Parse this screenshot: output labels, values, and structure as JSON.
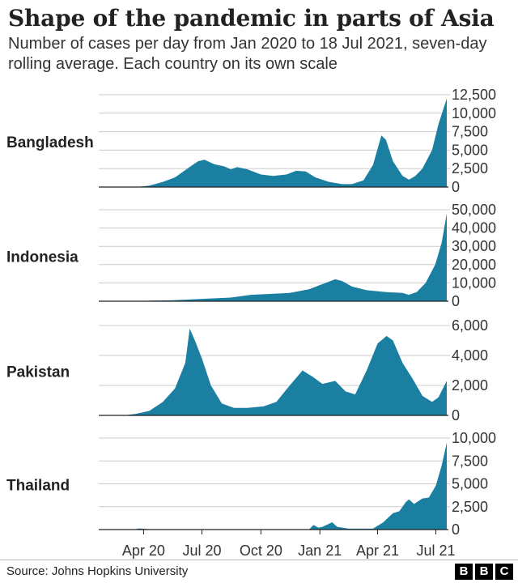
{
  "header": {
    "title": "Shape of the pandemic in parts of Asia",
    "subtitle": "Number of cases per day from Jan 2020 to 18 Jul 2021, seven-day rolling average. Each country on its own scale"
  },
  "footer": {
    "source": "Source: Johns Hopkins University",
    "logo_letters": [
      "B",
      "B",
      "C"
    ]
  },
  "colors": {
    "area": "#1a7fa1",
    "grid": "#cccccc",
    "axis": "#222222",
    "text": "#222222"
  },
  "chart_data": {
    "type": "area",
    "x_tick_labels": [
      "Apr 20",
      "Jul 20",
      "Oct 20",
      "Jan 21",
      "Apr 21",
      "Jul 21"
    ],
    "x_ticks": [
      "2020-04-01",
      "2020-07-01",
      "2020-10-01",
      "2021-01-01",
      "2021-04-01",
      "2021-07-01"
    ],
    "x_range": [
      "2020-01-22",
      "2021-07-18"
    ],
    "grid": true,
    "panels": [
      {
        "name": "Bangladesh",
        "ylim": [
          0,
          12500
        ],
        "yticks": [
          0,
          2500,
          5000,
          7500,
          10000,
          12500
        ],
        "ytick_labels": [
          "0",
          "2,500",
          "5,000",
          "7,500",
          "10,000",
          "12,500"
        ],
        "series": [
          [
            "2020-01-22",
            0
          ],
          [
            "2020-03-20",
            0
          ],
          [
            "2020-04-10",
            200
          ],
          [
            "2020-05-01",
            700
          ],
          [
            "2020-05-20",
            1300
          ],
          [
            "2020-06-10",
            2600
          ],
          [
            "2020-06-25",
            3500
          ],
          [
            "2020-07-05",
            3700
          ],
          [
            "2020-07-20",
            3100
          ],
          [
            "2020-08-05",
            2800
          ],
          [
            "2020-08-15",
            2400
          ],
          [
            "2020-08-25",
            2700
          ],
          [
            "2020-09-10",
            2400
          ],
          [
            "2020-10-01",
            1700
          ],
          [
            "2020-10-20",
            1500
          ],
          [
            "2020-11-10",
            1700
          ],
          [
            "2020-11-25",
            2200
          ],
          [
            "2020-12-10",
            2100
          ],
          [
            "2020-12-25",
            1300
          ],
          [
            "2021-01-15",
            700
          ],
          [
            "2021-02-05",
            400
          ],
          [
            "2021-02-20",
            400
          ],
          [
            "2021-03-10",
            900
          ],
          [
            "2021-03-25",
            3000
          ],
          [
            "2021-04-07",
            7000
          ],
          [
            "2021-04-14",
            6400
          ],
          [
            "2021-04-25",
            3500
          ],
          [
            "2021-05-10",
            1500
          ],
          [
            "2021-05-20",
            1000
          ],
          [
            "2021-05-30",
            1500
          ],
          [
            "2021-06-10",
            2500
          ],
          [
            "2021-06-25",
            5000
          ],
          [
            "2021-07-05",
            8500
          ],
          [
            "2021-07-18",
            12000
          ]
        ]
      },
      {
        "name": "Indonesia",
        "ylim": [
          0,
          50000
        ],
        "yticks": [
          0,
          10000,
          20000,
          30000,
          40000,
          50000
        ],
        "ytick_labels": [
          "0",
          "10,000",
          "20,000",
          "30,000",
          "40,000",
          "50,000"
        ],
        "series": [
          [
            "2020-01-22",
            0
          ],
          [
            "2020-03-15",
            0
          ],
          [
            "2020-04-15",
            300
          ],
          [
            "2020-05-15",
            500
          ],
          [
            "2020-06-15",
            1000
          ],
          [
            "2020-07-15",
            1500
          ],
          [
            "2020-08-15",
            2000
          ],
          [
            "2020-09-15",
            3500
          ],
          [
            "2020-10-15",
            4000
          ],
          [
            "2020-11-15",
            4500
          ],
          [
            "2020-12-15",
            6500
          ],
          [
            "2021-01-10",
            10000
          ],
          [
            "2021-01-25",
            12000
          ],
          [
            "2021-02-05",
            11000
          ],
          [
            "2021-02-20",
            8000
          ],
          [
            "2021-03-15",
            6000
          ],
          [
            "2021-04-15",
            5000
          ],
          [
            "2021-05-10",
            4500
          ],
          [
            "2021-05-20",
            3500
          ],
          [
            "2021-06-01",
            5000
          ],
          [
            "2021-06-15",
            10000
          ],
          [
            "2021-06-30",
            20000
          ],
          [
            "2021-07-10",
            32000
          ],
          [
            "2021-07-18",
            48000
          ]
        ]
      },
      {
        "name": "Pakistan",
        "ylim": [
          0,
          6000
        ],
        "yticks": [
          0,
          2000,
          4000,
          6000
        ],
        "ytick_labels": [
          "0",
          "2,000",
          "4,000",
          "6,000"
        ],
        "series": [
          [
            "2020-01-22",
            0
          ],
          [
            "2020-03-01",
            0
          ],
          [
            "2020-03-20",
            100
          ],
          [
            "2020-04-10",
            300
          ],
          [
            "2020-05-01",
            900
          ],
          [
            "2020-05-20",
            1800
          ],
          [
            "2020-06-05",
            3500
          ],
          [
            "2020-06-12",
            5800
          ],
          [
            "2020-06-20",
            5000
          ],
          [
            "2020-07-01",
            3800
          ],
          [
            "2020-07-15",
            2000
          ],
          [
            "2020-08-01",
            800
          ],
          [
            "2020-08-20",
            500
          ],
          [
            "2020-09-10",
            500
          ],
          [
            "2020-10-05",
            600
          ],
          [
            "2020-10-25",
            900
          ],
          [
            "2020-11-15",
            2000
          ],
          [
            "2020-12-05",
            3000
          ],
          [
            "2020-12-20",
            2600
          ],
          [
            "2021-01-05",
            2100
          ],
          [
            "2021-01-25",
            2300
          ],
          [
            "2021-02-10",
            1600
          ],
          [
            "2021-02-25",
            1400
          ],
          [
            "2021-03-15",
            3000
          ],
          [
            "2021-04-01",
            4800
          ],
          [
            "2021-04-15",
            5300
          ],
          [
            "2021-04-25",
            5000
          ],
          [
            "2021-05-10",
            3500
          ],
          [
            "2021-05-25",
            2500
          ],
          [
            "2021-06-10",
            1300
          ],
          [
            "2021-06-25",
            900
          ],
          [
            "2021-07-05",
            1200
          ],
          [
            "2021-07-18",
            2300
          ]
        ]
      },
      {
        "name": "Thailand",
        "ylim": [
          0,
          10000
        ],
        "yticks": [
          0,
          2500,
          5000,
          7500,
          10000
        ],
        "ytick_labels": [
          "0",
          "2,500",
          "5,000",
          "7,500",
          "10,000"
        ],
        "series": [
          [
            "2020-01-22",
            0
          ],
          [
            "2020-03-15",
            0
          ],
          [
            "2020-03-25",
            120
          ],
          [
            "2020-04-10",
            40
          ],
          [
            "2020-04-30",
            0
          ],
          [
            "2020-12-15",
            0
          ],
          [
            "2020-12-22",
            500
          ],
          [
            "2020-12-30",
            200
          ],
          [
            "2021-01-05",
            300
          ],
          [
            "2021-01-20",
            800
          ],
          [
            "2021-01-28",
            300
          ],
          [
            "2021-02-15",
            100
          ],
          [
            "2021-03-10",
            100
          ],
          [
            "2021-03-25",
            100
          ],
          [
            "2021-04-10",
            800
          ],
          [
            "2021-04-25",
            1800
          ],
          [
            "2021-05-05",
            2000
          ],
          [
            "2021-05-15",
            3000
          ],
          [
            "2021-05-20",
            3300
          ],
          [
            "2021-05-28",
            2800
          ],
          [
            "2021-06-10",
            3400
          ],
          [
            "2021-06-20",
            3500
          ],
          [
            "2021-07-01",
            4800
          ],
          [
            "2021-07-10",
            7000
          ],
          [
            "2021-07-18",
            9500
          ]
        ]
      }
    ]
  }
}
